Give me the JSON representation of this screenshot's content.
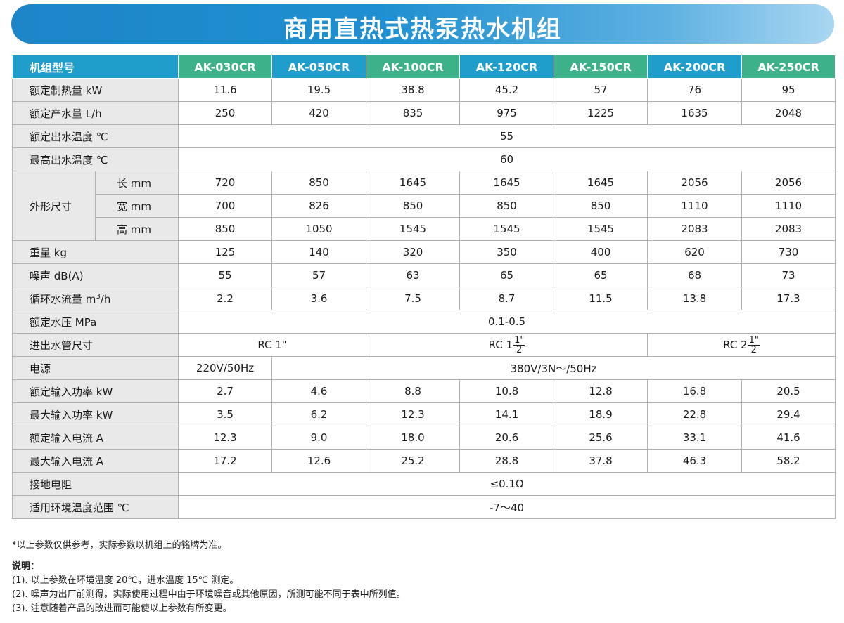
{
  "title": "商用直热式热泵热水机组",
  "header": {
    "label": "机组型号",
    "models": [
      "AK-030CR",
      "AK-050CR",
      "AK-100CR",
      "AK-120CR",
      "AK-150CR",
      "AK-200CR",
      "AK-250CR"
    ]
  },
  "rows": {
    "heat": {
      "label": "额定制热量 kW",
      "values": [
        "11.6",
        "19.5",
        "38.8",
        "45.2",
        "57",
        "76",
        "95"
      ]
    },
    "water": {
      "label": "额定产水量 L/h",
      "values": [
        "250",
        "420",
        "835",
        "975",
        "1225",
        "1635",
        "2048"
      ]
    },
    "outtemp": {
      "label": "额定出水温度 ℃",
      "value": "55"
    },
    "maxtemp": {
      "label": "最高出水温度 ℃",
      "value": "60"
    },
    "dims": {
      "label": "外形尺寸",
      "length": {
        "label": "长 mm",
        "values": [
          "720",
          "850",
          "1645",
          "1645",
          "1645",
          "2056",
          "2056"
        ]
      },
      "width": {
        "label": "宽 mm",
        "values": [
          "700",
          "826",
          "850",
          "850",
          "850",
          "1110",
          "1110"
        ]
      },
      "height": {
        "label": "高 mm",
        "values": [
          "850",
          "1050",
          "1545",
          "1545",
          "1545",
          "2083",
          "2083"
        ]
      }
    },
    "weight": {
      "label": "重量 kg",
      "values": [
        "125",
        "140",
        "320",
        "350",
        "400",
        "620",
        "730"
      ]
    },
    "noise": {
      "label": "噪声 dB(A)",
      "values": [
        "55",
        "57",
        "63",
        "65",
        "65",
        "68",
        "73"
      ]
    },
    "flow": {
      "label_pre": "循环水流量 m",
      "label_sup": "3",
      "label_post": "/h",
      "values": [
        "2.2",
        "3.6",
        "7.5",
        "8.7",
        "11.5",
        "13.8",
        "17.3"
      ]
    },
    "pressure": {
      "label": "额定水压 MPa",
      "value": "0.1-0.5"
    },
    "pipe": {
      "label": "进出水管尺寸",
      "a": "RC 1\"",
      "b_pre": "RC 1",
      "b_num": "1\"",
      "b_den": "2",
      "c_pre": "RC 2",
      "c_num": "1\"",
      "c_den": "2"
    },
    "power": {
      "label": "电源",
      "a": "220V/50Hz",
      "b": "380V/3N～/50Hz"
    },
    "ratedin": {
      "label": "额定输入功率 kW",
      "values": [
        "2.7",
        "4.6",
        "8.8",
        "10.8",
        "12.8",
        "16.8",
        "20.5"
      ]
    },
    "maxin": {
      "label": "最大输入功率 kW",
      "values": [
        "3.5",
        "6.2",
        "12.3",
        "14.1",
        "18.9",
        "22.8",
        "29.4"
      ]
    },
    "ratedcur": {
      "label": "额定输入电流 A",
      "values": [
        "12.3",
        "9.0",
        "18.0",
        "20.6",
        "25.6",
        "33.1",
        "41.6"
      ]
    },
    "maxcur": {
      "label": "最大输入电流 A",
      "values": [
        "17.2",
        "12.6",
        "25.2",
        "28.8",
        "37.8",
        "46.3",
        "58.2"
      ]
    },
    "ground": {
      "label": "接地电阻",
      "value": "≤0.1Ω"
    },
    "envtemp": {
      "label": "适用环境温度范围 ℃",
      "value": "-7～40"
    }
  },
  "footnote": "*以上参数仅供参考，实际参数以机组上的铭牌为准。",
  "notes": {
    "title": "说明：",
    "items": [
      "(1). 以上参数在环境温度 20℃，进水温度 15℃ 测定。",
      "(2). 噪声为出厂前测得，实际使用过程中由于环境噪音或其他原因，所测可能不同于表中所列值。",
      "(3). 注意随着产品的改进而可能使以上参数有所变更。"
    ]
  },
  "colors": {
    "banner": "#1e8fd0",
    "header_green": "#3db28a",
    "header_blue": "#1f9ecb",
    "label_bg": "#e9e9e9"
  }
}
